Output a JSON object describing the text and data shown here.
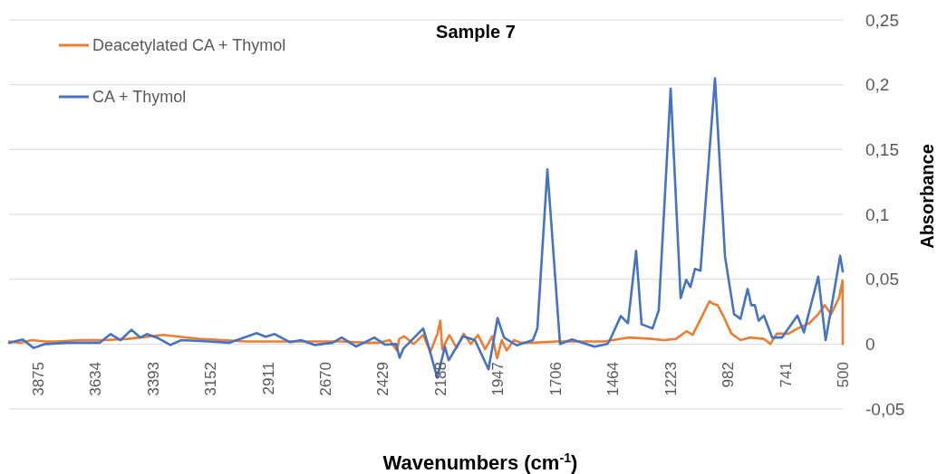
{
  "chart_data": {
    "type": "line",
    "title": "Sample 7",
    "xlabel": "Wavenumbers (cm$^{-1}$)",
    "ylabel": "Absorbance",
    "xlim": [
      3997,
      500
    ],
    "ylim": [
      -0.05,
      0.25
    ],
    "xticks": [
      3875,
      3634,
      3393,
      3152,
      2911,
      2670,
      2429,
      2188,
      1947,
      1706,
      1464,
      1223,
      982,
      741,
      500
    ],
    "yticks": [
      {
        "value": -0.05,
        "label": "-0,05"
      },
      {
        "value": 0,
        "label": "0"
      },
      {
        "value": 0.05,
        "label": "0,05"
      },
      {
        "value": 0.1,
        "label": "0,1"
      },
      {
        "value": 0.15,
        "label": "0,15"
      },
      {
        "value": 0.2,
        "label": "0,2"
      },
      {
        "value": 0.25,
        "label": "0,25"
      }
    ],
    "grid": "y",
    "legend": "top left",
    "marker": "none",
    "line_style": "solid",
    "series": [
      {
        "name": "Deacetylated CA + Thymol",
        "color": "#ed7d31",
        "x": [
          3997,
          3950,
          3900,
          3850,
          3800,
          3700,
          3600,
          3500,
          3450,
          3400,
          3350,
          3300,
          3200,
          3100,
          3000,
          2900,
          2800,
          2700,
          2600,
          2500,
          2450,
          2400,
          2370,
          2360,
          2340,
          2300,
          2260,
          2230,
          2200,
          2188,
          2180,
          2150,
          2120,
          2090,
          2060,
          2030,
          2000,
          1970,
          1950,
          1930,
          1910,
          1880,
          1850,
          1800,
          1700,
          1600,
          1500,
          1400,
          1300,
          1250,
          1200,
          1154,
          1130,
          1097,
          1059,
          1044,
          1025,
          1002,
          967,
          929,
          891,
          831,
          804,
          777,
          728,
          690,
          641,
          603,
          576,
          549,
          515,
          501,
          500
        ],
        "values": [
          0.002,
          0.001,
          0.003,
          0.002,
          0.002,
          0.003,
          0.003,
          0.004,
          0.005,
          0.006,
          0.007,
          0.006,
          0.004,
          0.003,
          0.002,
          0.002,
          0.002,
          0.002,
          0.002,
          0.001,
          0.001,
          0.003,
          -0.005,
          0.004,
          0.006,
          0.0,
          0.007,
          -0.006,
          0.008,
          0.018,
          -0.004,
          0.007,
          -0.003,
          0.008,
          0.0,
          0.007,
          -0.004,
          0.006,
          -0.011,
          0.003,
          -0.005,
          0.003,
          0.001,
          0.001,
          0.002,
          0.002,
          0.002,
          0.005,
          0.004,
          0.003,
          0.004,
          0.01,
          0.007,
          0.019,
          0.033,
          0.031,
          0.03,
          0.022,
          0.008,
          0.003,
          0.005,
          0.004,
          0.0,
          0.008,
          0.008,
          0.012,
          0.016,
          0.023,
          0.03,
          0.023,
          0.036,
          0.049,
          0.0
        ]
      },
      {
        "name": "CA + Thymol",
        "color": "#4472c4",
        "x": [
          3997,
          3940,
          3894,
          3845,
          3750,
          3617,
          3571,
          3529,
          3484,
          3446,
          3419,
          3377,
          3320,
          3275,
          3161,
          3073,
          2959,
          2921,
          2883,
          2818,
          2773,
          2716,
          2640,
          2602,
          2541,
          2465,
          2419,
          2374,
          2359,
          2343,
          2260,
          2237,
          2201,
          2169,
          2153,
          2093,
          2043,
          1986,
          1948,
          1921,
          1868,
          1800,
          1781,
          1739,
          1686,
          1636,
          1541,
          1488,
          1477,
          1431,
          1401,
          1367,
          1344,
          1298,
          1272,
          1222,
          1180,
          1157,
          1139,
          1120,
          1097,
          1036,
          994,
          956,
          929,
          899,
          884,
          869,
          853,
          831,
          796,
          755,
          690,
          663,
          603,
          572,
          546,
          511,
          500
        ],
        "values": [
          0.001,
          0.0035,
          -0.003,
          0.0,
          0.001,
          0.001,
          0.0077,
          0.003,
          0.011,
          0.005,
          0.0077,
          0.005,
          -0.0007,
          0.003,
          0.002,
          0.001,
          0.0084,
          0.0056,
          0.0077,
          0.0014,
          0.003,
          -0.0007,
          0.001,
          0.005,
          -0.002,
          0.005,
          -0.0005,
          0.0,
          -0.0105,
          -0.0035,
          0.012,
          -0.002,
          -0.026,
          -0.002,
          -0.0125,
          0.006,
          0.003,
          -0.0195,
          0.02,
          0.005,
          -0.001,
          0.003,
          0.012,
          0.1347,
          0.0,
          0.0035,
          -0.002,
          0.0,
          0.003,
          0.0216,
          0.016,
          0.0718,
          0.0153,
          0.012,
          0.026,
          0.197,
          0.0355,
          0.0495,
          0.044,
          0.058,
          0.0565,
          0.205,
          0.0676,
          0.023,
          0.0195,
          0.0425,
          0.03,
          0.03,
          0.018,
          0.022,
          0.005,
          0.005,
          0.022,
          0.009,
          0.052,
          0.003,
          0.03,
          0.068,
          0.056
        ]
      }
    ]
  }
}
